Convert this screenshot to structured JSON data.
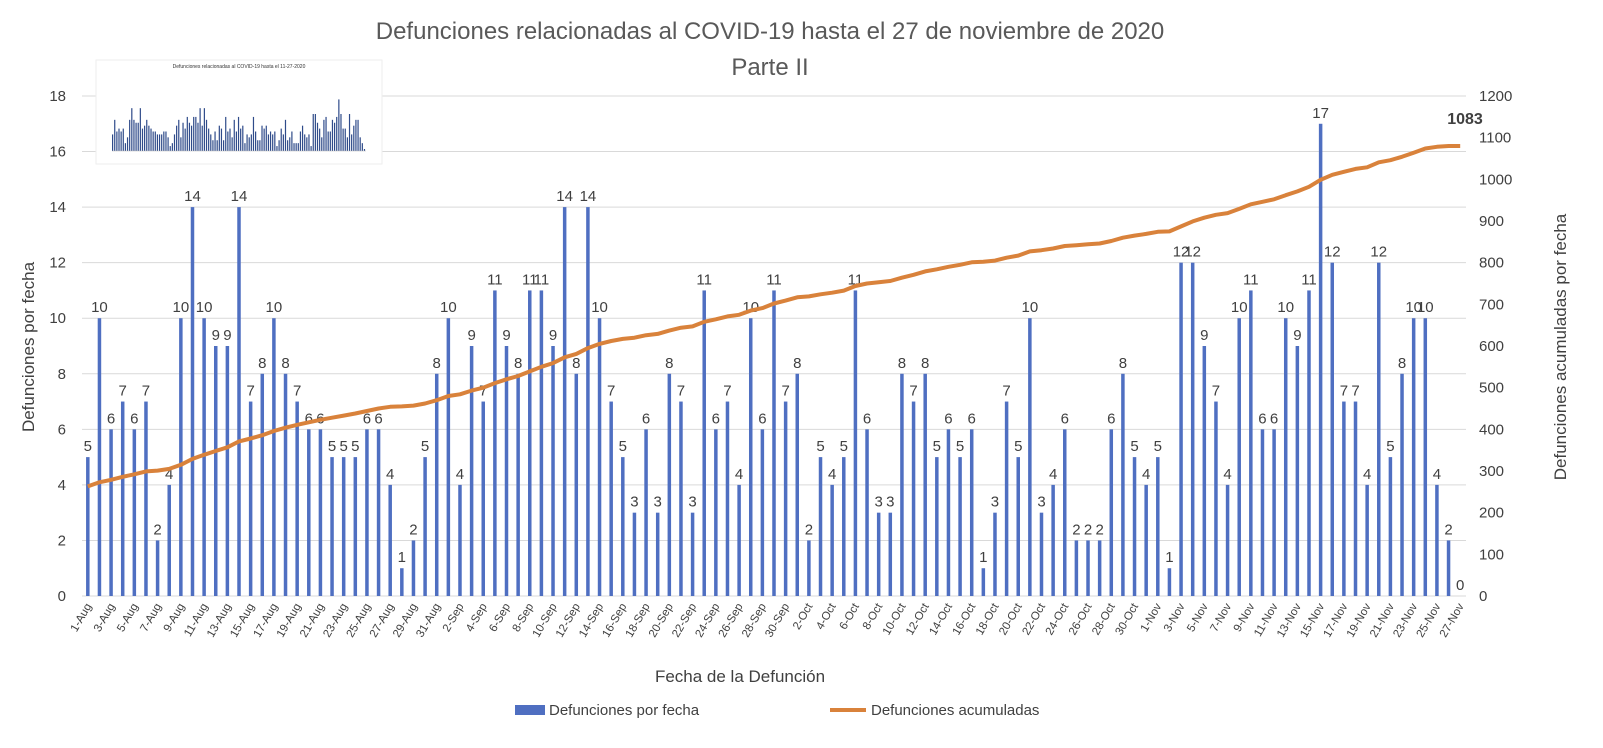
{
  "chart_data": {
    "type": "bar+line",
    "title": "Defunciones relacionadas al COVID-19 hasta el 27 de noviembre de 2020",
    "subtitle": "Parte II",
    "xlabel": "Fecha de la Defunción",
    "ylabel_left": "Defunciones por fecha",
    "ylabel_right": "Defunciones acumuladas por fecha",
    "ylim_left": [
      0,
      18
    ],
    "yticks_left": [
      0,
      2,
      4,
      6,
      8,
      10,
      12,
      14,
      16,
      18
    ],
    "ylim_right": [
      0,
      1200
    ],
    "yticks_right": [
      0,
      100,
      200,
      300,
      400,
      500,
      600,
      700,
      800,
      900,
      1000,
      1100,
      1200
    ],
    "grid": true,
    "legend_position": "bottom",
    "colors": {
      "bars": "#4f6fc1",
      "line": "#d9823b"
    },
    "x_tick_labels": [
      "1-Aug",
      "3-Aug",
      "5-Aug",
      "7-Aug",
      "9-Aug",
      "11-Aug",
      "13-Aug",
      "15-Aug",
      "17-Aug",
      "19-Aug",
      "21-Aug",
      "23-Aug",
      "25-Aug",
      "27-Aug",
      "29-Aug",
      "31-Aug",
      "2-Sep",
      "4-Sep",
      "6-Sep",
      "8-Sep",
      "10-Sep",
      "12-Sep",
      "14-Sep",
      "16-Sep",
      "18-Sep",
      "20-Sep",
      "22-Sep",
      "24-Sep",
      "26-Sep",
      "28-Sep",
      "30-Sep",
      "2-Oct",
      "4-Oct",
      "6-Oct",
      "8-Oct",
      "10-Oct",
      "12-Oct",
      "14-Oct",
      "16-Oct",
      "18-Oct",
      "20-Oct",
      "22-Oct",
      "24-Oct",
      "26-Oct",
      "28-Oct",
      "30-Oct",
      "1-Nov",
      "3-Nov",
      "5-Nov",
      "7-Nov",
      "9-Nov",
      "11-Nov",
      "13-Nov",
      "15-Nov",
      "17-Nov",
      "19-Nov",
      "21-Nov",
      "23-Nov",
      "25-Nov",
      "27-Nov"
    ],
    "series": [
      {
        "name": "Defunciones por fecha",
        "type": "bar",
        "values": [
          5,
          10,
          6,
          7,
          6,
          7,
          2,
          4,
          10,
          14,
          10,
          9,
          9,
          14,
          7,
          8,
          10,
          8,
          7,
          6,
          6,
          5,
          5,
          5,
          6,
          6,
          4,
          1,
          2,
          5,
          8,
          10,
          4,
          9,
          7,
          11,
          9,
          8,
          11,
          11,
          9,
          14,
          8,
          14,
          10,
          7,
          5,
          3,
          6,
          3,
          8,
          7,
          3,
          11,
          6,
          7,
          4,
          10,
          6,
          11,
          7,
          8,
          2,
          5,
          4,
          5,
          11,
          6,
          3,
          3,
          8,
          7,
          8,
          5,
          6,
          5,
          6,
          1,
          3,
          7,
          5,
          10,
          3,
          4,
          6,
          2,
          2,
          2,
          6,
          8,
          5,
          4,
          5,
          1,
          12,
          12,
          9,
          7,
          4,
          10,
          11,
          6,
          6,
          10,
          9,
          11,
          17,
          12,
          7,
          7,
          4,
          12,
          5,
          8,
          10,
          10,
          4,
          2,
          0
        ]
      },
      {
        "name": "Defunciones acumuladas",
        "type": "line",
        "start_value": 263,
        "end_value": 1083
      }
    ],
    "annotations": [
      "1083"
    ]
  },
  "inset": {
    "title": "Defunciones relacionadas al COVID-19 hasta el 11-27-2020"
  }
}
